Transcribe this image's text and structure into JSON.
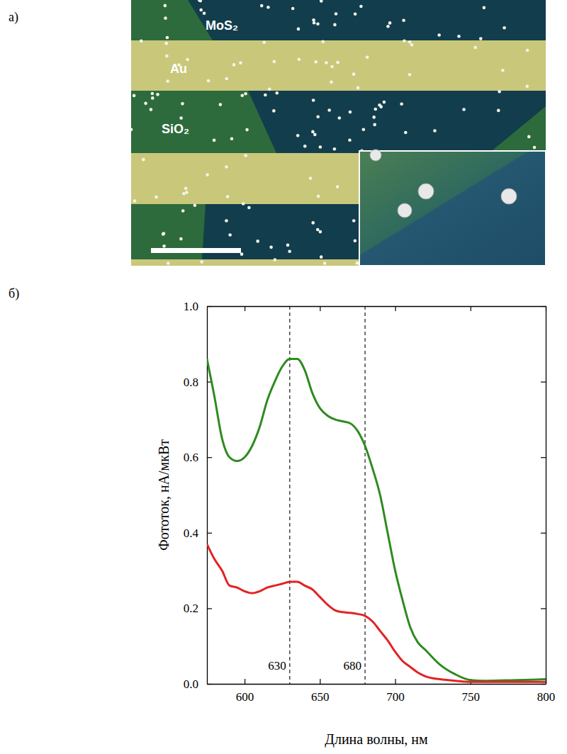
{
  "panel_labels": [
    "а)",
    "б)"
  ],
  "image": {
    "labels": [
      "MoS₂",
      "Au",
      "SiO₂"
    ]
  },
  "chart_data": {
    "type": "line",
    "x_label": "Длина волны, нм",
    "y_label": "Фототок, нА/мкВт",
    "x": [
      575,
      580,
      585,
      590,
      595,
      600,
      605,
      610,
      615,
      620,
      625,
      630,
      635,
      640,
      645,
      650,
      655,
      660,
      665,
      670,
      675,
      680,
      685,
      690,
      695,
      700,
      705,
      710,
      715,
      720,
      730,
      740,
      750,
      760,
      780,
      800
    ],
    "series": [
      {
        "color": "#2e8b1f",
        "values": [
          0.86,
          0.76,
          0.65,
          0.6,
          0.59,
          0.6,
          0.63,
          0.68,
          0.75,
          0.8,
          0.84,
          0.86,
          0.86,
          0.83,
          0.77,
          0.73,
          0.71,
          0.7,
          0.695,
          0.69,
          0.67,
          0.63,
          0.57,
          0.5,
          0.4,
          0.3,
          0.22,
          0.15,
          0.11,
          0.09,
          0.05,
          0.025,
          0.01,
          0.008,
          0.01,
          0.012
        ]
      },
      {
        "color": "#e32222",
        "values": [
          0.37,
          0.33,
          0.3,
          0.26,
          0.255,
          0.245,
          0.24,
          0.245,
          0.255,
          0.26,
          0.265,
          0.27,
          0.27,
          0.26,
          0.25,
          0.23,
          0.21,
          0.195,
          0.19,
          0.188,
          0.185,
          0.18,
          0.165,
          0.14,
          0.115,
          0.085,
          0.06,
          0.045,
          0.03,
          0.02,
          0.012,
          0.008,
          0.005,
          0.005,
          0.005,
          0.005
        ]
      }
    ],
    "xlim": [
      575,
      800
    ],
    "xticks": [
      600,
      650,
      700,
      750,
      800
    ],
    "ylim": [
      0,
      1
    ],
    "yticks": [
      {
        "value": 0,
        "label": "0.0"
      },
      0.2,
      0.4,
      0.6,
      0.8,
      {
        "value": 1,
        "label": "1.0"
      }
    ],
    "annotations": [
      {
        "x": 630,
        "text": "630"
      },
      {
        "x": 680,
        "text": "680"
      }
    ],
    "grid": false
  }
}
